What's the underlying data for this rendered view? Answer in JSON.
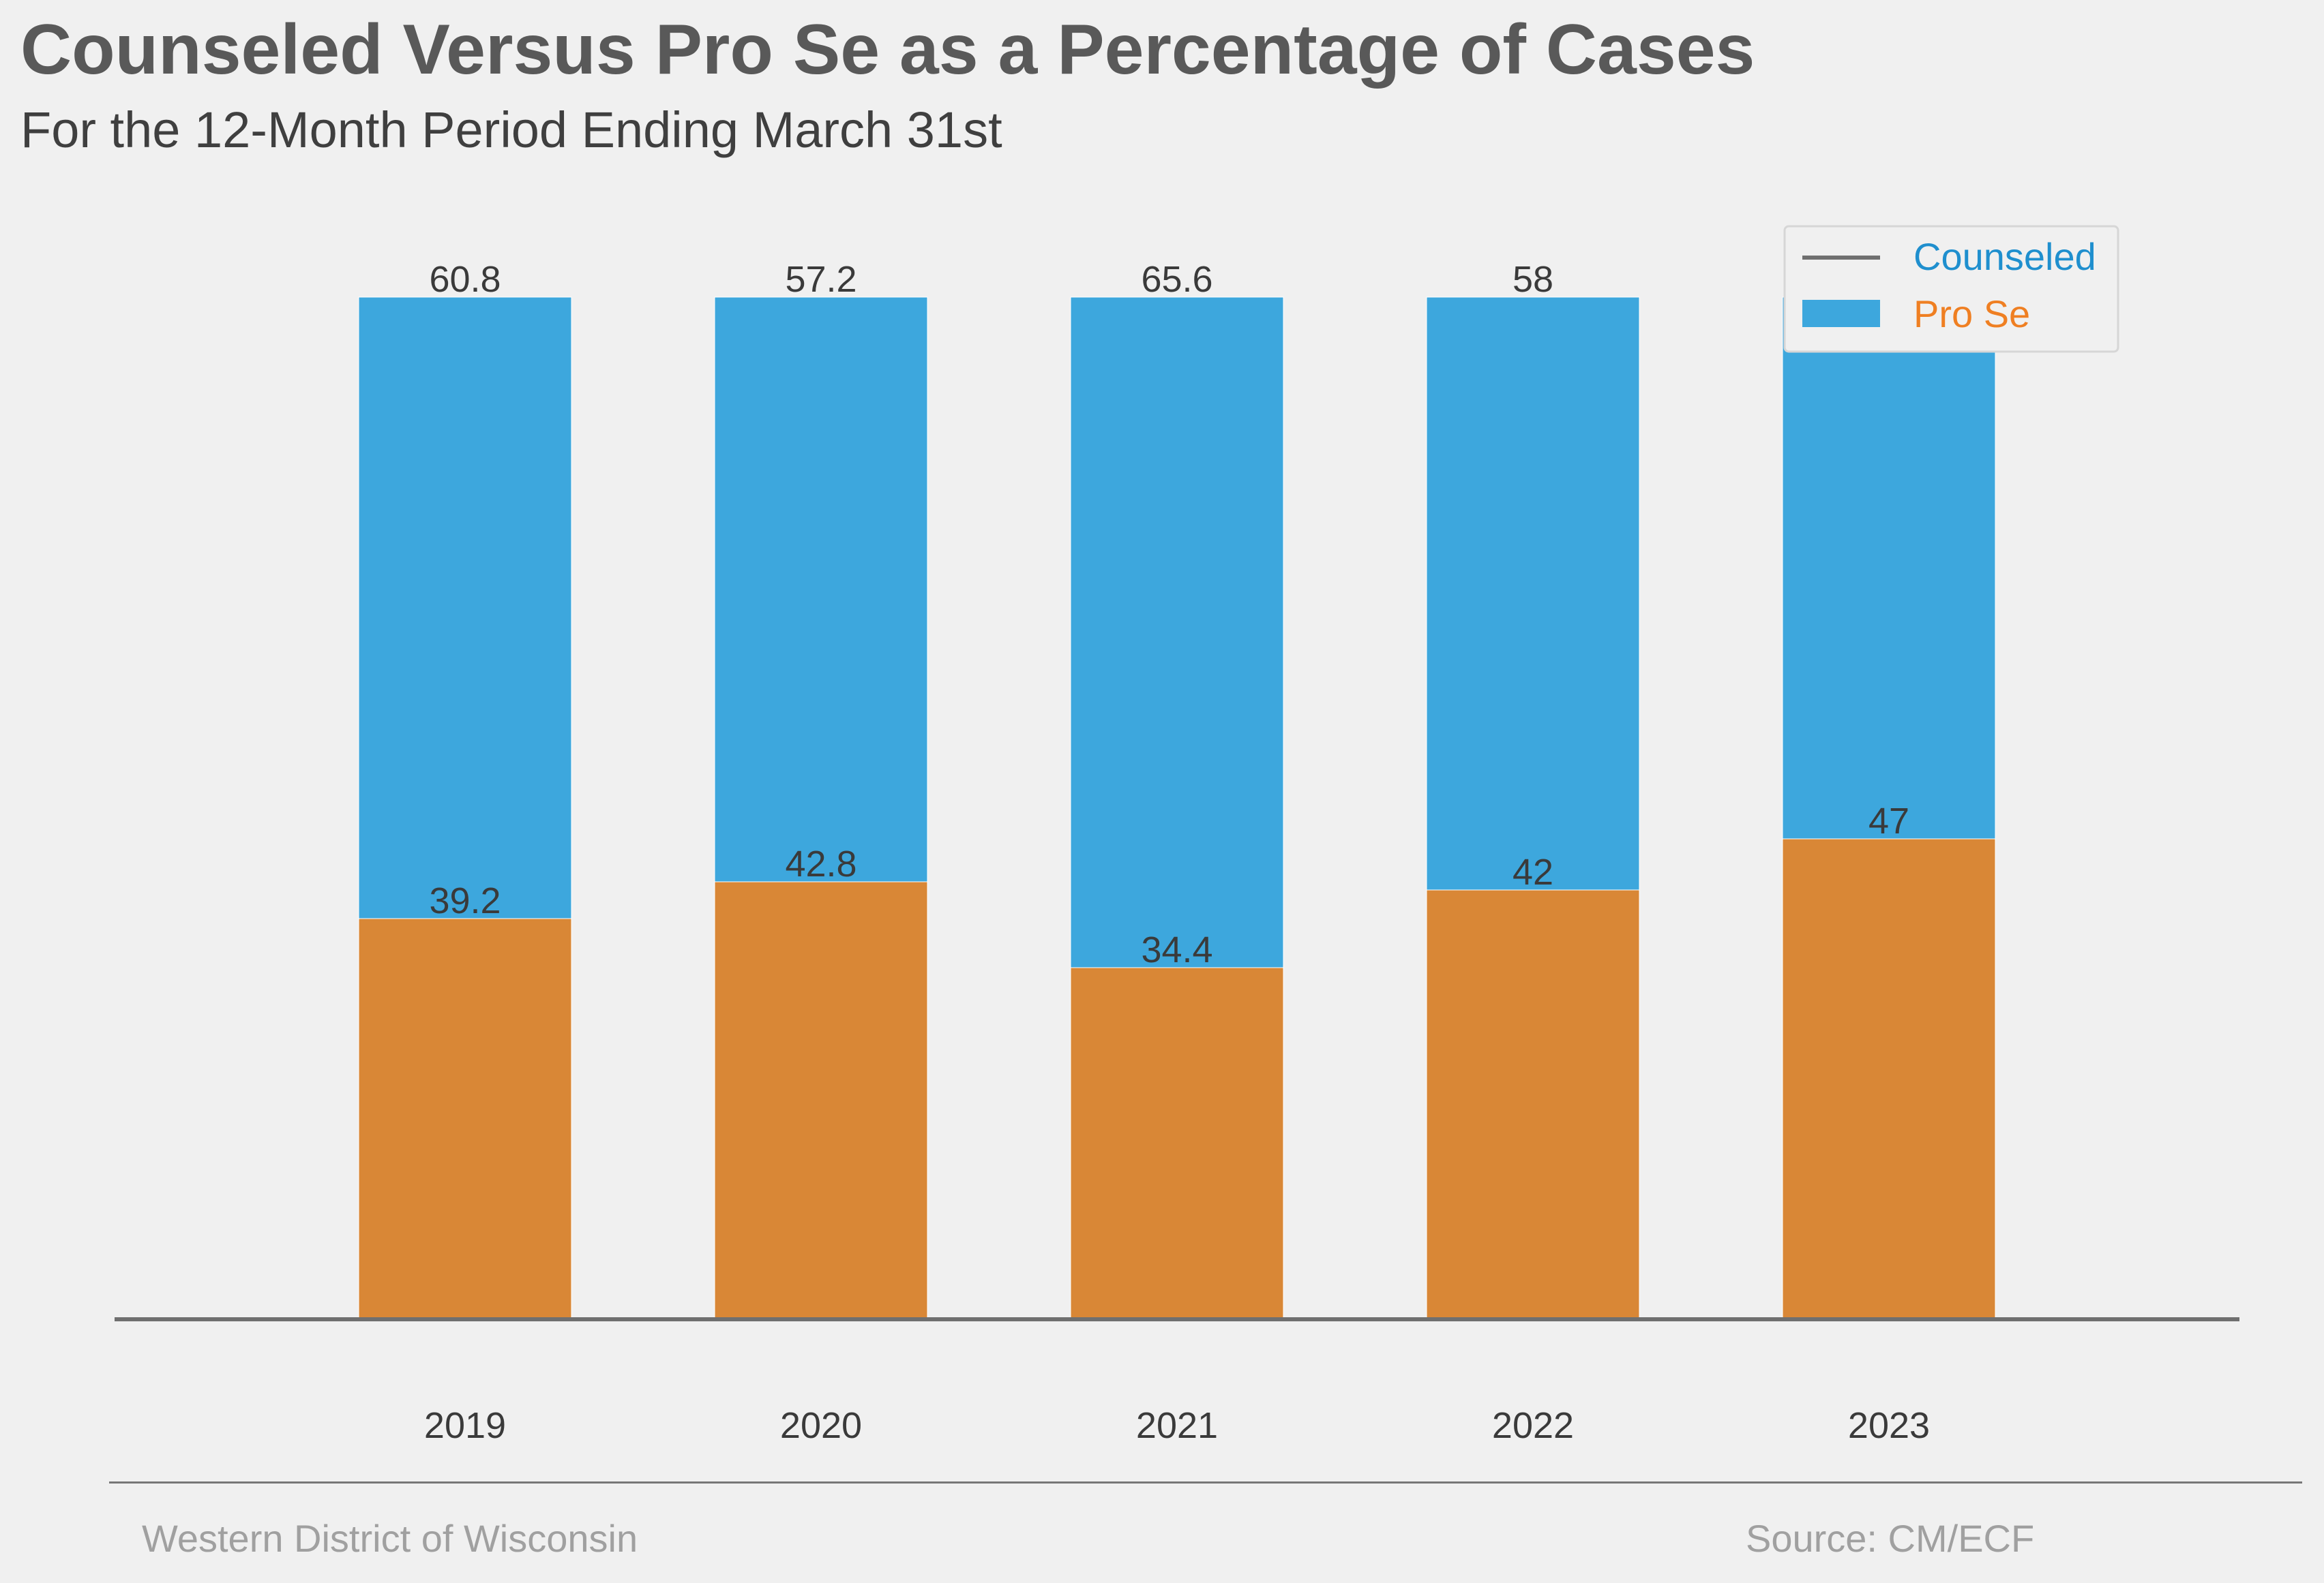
{
  "title": "Counseled Versus Pro Se as a Percentage of Cases",
  "subtitle": "For the 12-Month Period Ending March 31st",
  "footer": {
    "left": "Western District of Wisconsin",
    "right": "Source: CM/ECF"
  },
  "colors": {
    "background": "#f0f0f0",
    "counseled_bar": "#d98736",
    "pro_se_bar": "#3da7dd",
    "counseled_legend_text": "#1f8fce",
    "pro_se_legend_text": "#ef7f22",
    "axis": "#6f6f6f",
    "label_text": "#3a3a3a"
  },
  "chart_data": {
    "type": "bar",
    "stacked": true,
    "categories": [
      "2019",
      "2020",
      "2021",
      "2022",
      "2023"
    ],
    "series": [
      {
        "name": "Counseled",
        "values": [
          39.2,
          42.8,
          34.4,
          42,
          47
        ]
      },
      {
        "name": "Pro Se",
        "values": [
          60.8,
          57.2,
          65.6,
          58,
          53
        ]
      }
    ],
    "ylim": [
      0,
      100
    ],
    "grid": false,
    "legend_position": "top-right",
    "legend": [
      {
        "label": "Counseled",
        "symbol": "line"
      },
      {
        "label": "Pro Se",
        "symbol": "patch"
      }
    ]
  }
}
